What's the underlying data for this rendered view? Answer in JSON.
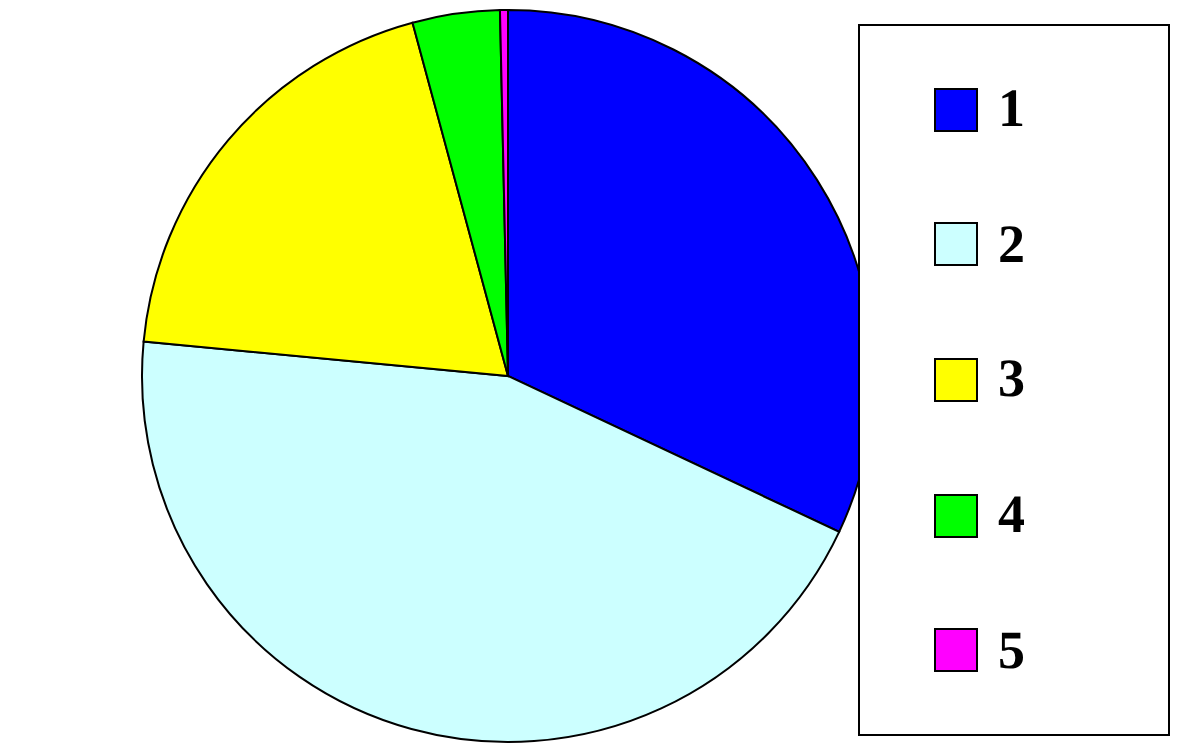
{
  "chart_data": {
    "type": "pie",
    "categories": [
      "1",
      "2",
      "3",
      "4",
      "5"
    ],
    "values": [
      32,
      44.5,
      19.3,
      3.85,
      0.35
    ],
    "colors": [
      "#0000ff",
      "#ccffff",
      "#ffff00",
      "#00ff00",
      "#ff00ff"
    ],
    "legend": "right"
  }
}
